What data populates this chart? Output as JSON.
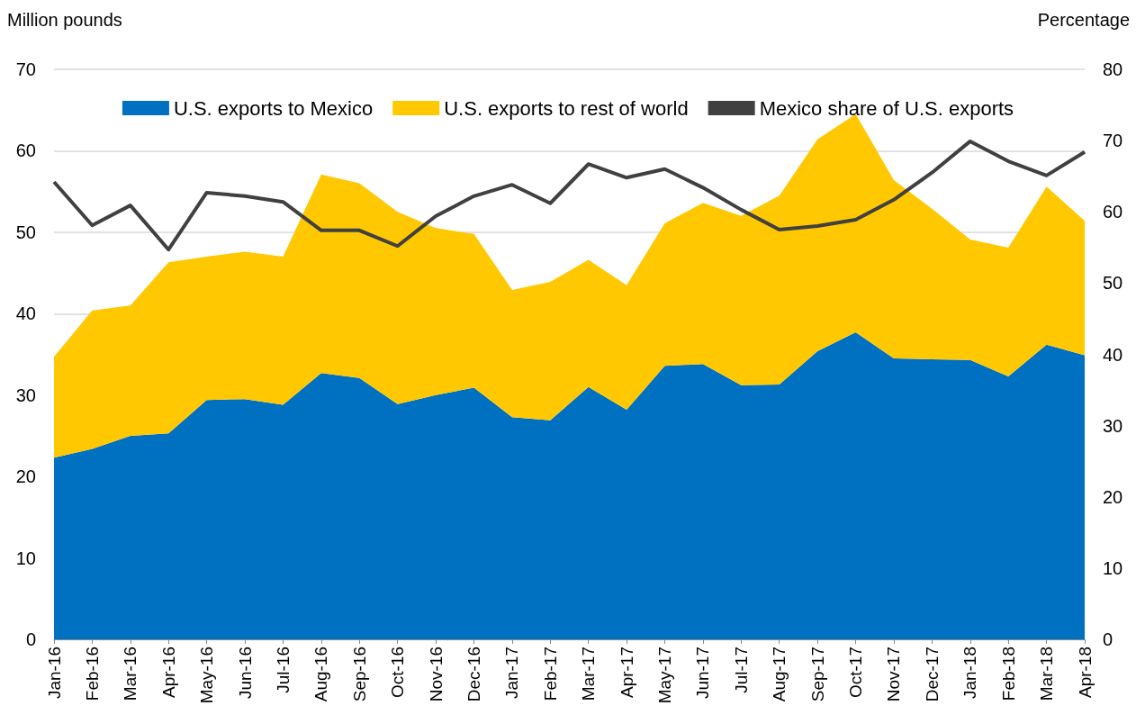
{
  "chart_data": {
    "type": "area",
    "stacked": true,
    "ylabel": "Million pounds",
    "y2label": "Percentage",
    "categories": [
      "Jan-16",
      "Feb-16",
      "Mar-16",
      "Apr-16",
      "May-16",
      "Jun-16",
      "Jul-16",
      "Aug-16",
      "Sep-16",
      "Oct-16",
      "Nov-16",
      "Dec-16",
      "Jan-17",
      "Feb-17",
      "Mar-17",
      "Apr-17",
      "May-17",
      "Jun-17",
      "Jul-17",
      "Aug-17",
      "Sep-17",
      "Oct-17",
      "Nov-17",
      "Dec-17",
      "Jan-18",
      "Feb-18",
      "Mar-18",
      "Apr-18"
    ],
    "series": [
      {
        "name": "U.S. exports to Mexico",
        "color": "#0070c0",
        "values": [
          22.3,
          23.4,
          25.0,
          25.3,
          29.4,
          29.5,
          28.8,
          32.7,
          32.1,
          28.9,
          30.0,
          30.9,
          27.3,
          26.9,
          31.0,
          28.2,
          33.6,
          33.8,
          31.2,
          31.3,
          35.4,
          37.7,
          34.5,
          34.4,
          34.3,
          32.3,
          36.2,
          34.9
        ]
      },
      {
        "name": "U.S. exports to rest of world",
        "color": "#ffc800",
        "values": [
          12.4,
          17.0,
          16.0,
          21.0,
          17.6,
          18.1,
          18.2,
          24.4,
          23.9,
          23.6,
          20.5,
          18.9,
          15.6,
          17.0,
          15.6,
          15.3,
          17.5,
          19.8,
          20.8,
          23.2,
          26.0,
          26.8,
          21.9,
          18.5,
          14.8,
          15.8,
          19.4,
          16.5
        ]
      },
      {
        "name": "Mexico share of U.S. exports",
        "type": "line",
        "axis": "y2",
        "color": "#404040",
        "values": [
          64.2,
          58.1,
          60.9,
          54.7,
          62.7,
          62.2,
          61.4,
          57.4,
          57.4,
          55.2,
          59.4,
          62.2,
          63.8,
          61.2,
          66.7,
          64.8,
          66.0,
          63.4,
          60.3,
          57.5,
          58.0,
          58.9,
          61.7,
          65.5,
          69.9,
          67.1,
          65.1,
          68.4
        ]
      }
    ],
    "ylim": [
      0,
      70
    ],
    "yticks": [
      0,
      10,
      20,
      30,
      40,
      50,
      60,
      70
    ],
    "y2lim": [
      0,
      80
    ],
    "y2ticks": [
      0,
      10,
      20,
      30,
      40,
      50,
      60,
      70,
      80
    ],
    "grid": "y",
    "legend": "top",
    "marker": "none"
  }
}
